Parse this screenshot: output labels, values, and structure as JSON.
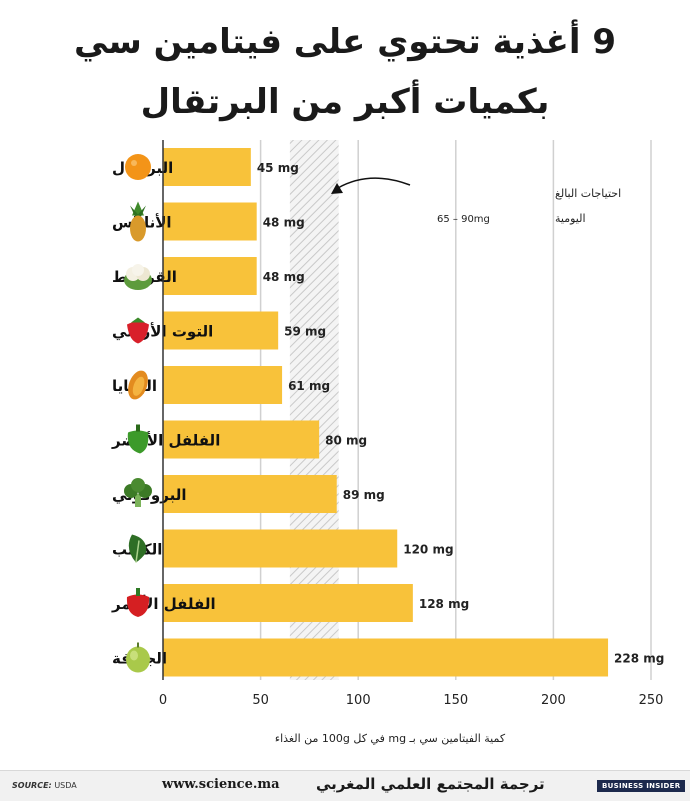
{
  "title_line1": "9 أغذية تحتوي على فيتامين سي",
  "title_line2": "بكميات أكبر من البرتقال",
  "annotation": {
    "line1": "احتياجات البالغ",
    "line2": "اليومية",
    "range": "65 – 90mg"
  },
  "footer": {
    "source_label": "SOURCE:",
    "source_value": "USDA",
    "website": "www.science.ma",
    "credit": "ترجمة المجتمع العلمي المغربي",
    "brand": "BUSINESS INSIDER"
  },
  "chart_data": {
    "type": "bar",
    "orientation": "horizontal",
    "categories": [
      "البرتقال",
      "الأناناس",
      "القرنبيط",
      "التوت الأرضي",
      "البابايا",
      "الفلفل الأخضر",
      "البروكولي",
      "الكرنب",
      "الفلفل الأحمر",
      "الجوافة"
    ],
    "values": [
      45,
      48,
      48,
      59,
      61,
      80,
      89,
      120,
      128,
      228
    ],
    "value_labels": [
      "45 mg",
      "48 mg",
      "48 mg",
      "59 mg",
      "61 mg",
      "80 mg",
      "89 mg",
      "120 mg",
      "128 mg",
      "228 mg"
    ],
    "icons": [
      "orange-icon",
      "pineapple-icon",
      "cauliflower-icon",
      "strawberry-icon",
      "papaya-icon",
      "green-pepper-icon",
      "broccoli-icon",
      "kale-icon",
      "red-pepper-icon",
      "guava-icon"
    ],
    "xlim": [
      0,
      250
    ],
    "xticks": [
      0,
      50,
      100,
      150,
      200,
      250
    ],
    "xlabel": "كمية الفيتامين سي بـ mg في كل 100g من الغذاء",
    "reference_band": [
      65,
      90
    ],
    "bar_color": "#f8c23a",
    "grid": true
  }
}
